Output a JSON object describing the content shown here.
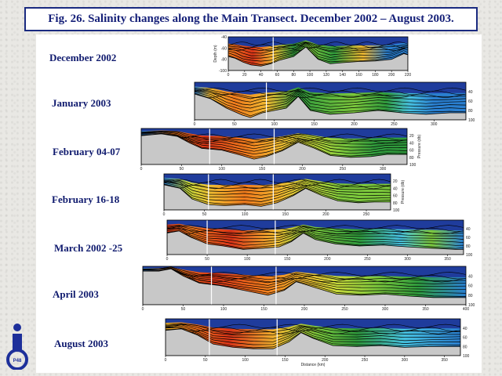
{
  "title": "Fig. 26. Salinity changes along the Main Transect. December 2002 – August 2003.",
  "logo": {
    "text": "P48",
    "colors": {
      "primary": "#1d2f9a",
      "ring": "#2a3ab0"
    }
  },
  "colors": {
    "surface": "#1f3c9c",
    "bottom": "#c8c8c8",
    "levels": [
      "#1f3c9c",
      "#2a7fd0",
      "#46c0e0",
      "#2f9a3c",
      "#7cc83c",
      "#c6d83a",
      "#f0b830",
      "#f07a1c",
      "#d83418"
    ],
    "contour": "#000000",
    "marker": "#ffffff"
  },
  "chart_data": [
    {
      "type": "heatmap",
      "label": "December 2002",
      "xticks": [
        "0",
        "20",
        "40",
        "60",
        "80",
        "100",
        "120",
        "140",
        "160",
        "180",
        "200",
        "220"
      ],
      "xlim": [
        0,
        220
      ],
      "markers": [
        55
      ],
      "yaxis_label": "Depth (m)",
      "yticks": [
        "-40",
        "-60",
        "-80",
        "-100"
      ],
      "ylim": [
        -100,
        -40
      ],
      "yside": "left",
      "xlabel": "",
      "bottom": [
        [
          0,
          75
        ],
        [
          8,
          78
        ],
        [
          18,
          85
        ],
        [
          28,
          90
        ],
        [
          40,
          92
        ],
        [
          52,
          88
        ],
        [
          62,
          82
        ],
        [
          80,
          75
        ],
        [
          95,
          58
        ],
        [
          110,
          80
        ],
        [
          125,
          88
        ],
        [
          140,
          86
        ],
        [
          160,
          84
        ],
        [
          180,
          83
        ],
        [
          200,
          80
        ],
        [
          215,
          70
        ],
        [
          220,
          72
        ]
      ],
      "zones": [
        [
          0,
          "#f07a1c"
        ],
        [
          30,
          "#d83418"
        ],
        [
          55,
          "#f0b830"
        ],
        [
          80,
          "#2f9a3c"
        ],
        [
          100,
          "#7cc83c"
        ],
        [
          130,
          "#2f9a3c"
        ],
        [
          165,
          "#f0b830"
        ],
        [
          195,
          "#2a7fd0"
        ],
        [
          220,
          "#2a7fd0"
        ]
      ]
    },
    {
      "type": "heatmap",
      "label": "January 2003",
      "xticks": [
        "0",
        "50",
        "100",
        "150",
        "200",
        "250",
        "300"
      ],
      "xlim": [
        0,
        340
      ],
      "markers": [
        90
      ],
      "yaxis_label": "",
      "yticks": [
        "40",
        "60",
        "80",
        "100"
      ],
      "ylim": [
        20,
        100
      ],
      "yside": "right",
      "xlabel": "",
      "bottom": [
        [
          0,
          45
        ],
        [
          20,
          55
        ],
        [
          40,
          75
        ],
        [
          60,
          90
        ],
        [
          70,
          95
        ],
        [
          85,
          85
        ],
        [
          100,
          80
        ],
        [
          115,
          75
        ],
        [
          130,
          50
        ],
        [
          145,
          80
        ],
        [
          170,
          88
        ],
        [
          200,
          85
        ],
        [
          230,
          80
        ],
        [
          260,
          85
        ],
        [
          290,
          88
        ],
        [
          320,
          85
        ],
        [
          340,
          85
        ]
      ],
      "zones": [
        [
          0,
          "#2a7fd0"
        ],
        [
          20,
          "#f0b830"
        ],
        [
          50,
          "#f07a1c"
        ],
        [
          90,
          "#f0b830"
        ],
        [
          130,
          "#2f9a3c"
        ],
        [
          200,
          "#7cc83c"
        ],
        [
          240,
          "#2f9a3c"
        ],
        [
          270,
          "#46c0e0"
        ],
        [
          300,
          "#2a7fd0"
        ],
        [
          340,
          "#2a7fd0"
        ]
      ]
    },
    {
      "type": "heatmap",
      "label": "February 04-07",
      "xticks": [
        "0",
        "50",
        "100",
        "150",
        "200",
        "250",
        "300"
      ],
      "xlim": [
        0,
        330
      ],
      "markers": [
        85,
        165
      ],
      "yaxis_label": "Pressure (db)",
      "yticks": [
        "20",
        "40",
        "60",
        "80",
        "100"
      ],
      "ylim": [
        0,
        100
      ],
      "yside": "right",
      "xlabel": "",
      "bottom": [
        [
          0,
          20
        ],
        [
          25,
          15
        ],
        [
          45,
          22
        ],
        [
          60,
          40
        ],
        [
          75,
          55
        ],
        [
          100,
          60
        ],
        [
          125,
          75
        ],
        [
          140,
          85
        ],
        [
          155,
          78
        ],
        [
          175,
          62
        ],
        [
          195,
          38
        ],
        [
          215,
          55
        ],
        [
          235,
          75
        ],
        [
          260,
          80
        ],
        [
          285,
          78
        ],
        [
          305,
          72
        ],
        [
          330,
          72
        ]
      ],
      "zones": [
        [
          0,
          "#2a7fd0"
        ],
        [
          40,
          "#f07a1c"
        ],
        [
          80,
          "#d83418"
        ],
        [
          130,
          "#f07a1c"
        ],
        [
          170,
          "#f0b830"
        ],
        [
          210,
          "#c6d83a"
        ],
        [
          250,
          "#7cc83c"
        ],
        [
          290,
          "#2f9a3c"
        ],
        [
          330,
          "#2f9a3c"
        ]
      ]
    },
    {
      "type": "heatmap",
      "label": "February 16-18",
      "xticks": [
        "0",
        "50",
        "100",
        "150",
        "200",
        "250"
      ],
      "xlim": [
        0,
        280
      ],
      "markers": [
        55,
        135
      ],
      "yaxis_label": "Pressure (db)",
      "yticks": [
        "20",
        "40",
        "60",
        "80",
        "100"
      ],
      "ylim": [
        0,
        100
      ],
      "yside": "right",
      "xlabel": "",
      "bottom": [
        [
          0,
          30
        ],
        [
          20,
          40
        ],
        [
          35,
          70
        ],
        [
          55,
          85
        ],
        [
          75,
          88
        ],
        [
          100,
          85
        ],
        [
          120,
          90
        ],
        [
          140,
          80
        ],
        [
          160,
          60
        ],
        [
          175,
          40
        ],
        [
          195,
          60
        ],
        [
          215,
          75
        ],
        [
          240,
          80
        ],
        [
          260,
          78
        ],
        [
          280,
          78
        ]
      ],
      "zones": [
        [
          0,
          "#2a7fd0"
        ],
        [
          30,
          "#c6d83a"
        ],
        [
          60,
          "#f0b830"
        ],
        [
          100,
          "#f07a1c"
        ],
        [
          145,
          "#f0b830"
        ],
        [
          180,
          "#c6d83a"
        ],
        [
          220,
          "#7cc83c"
        ],
        [
          280,
          "#7cc83c"
        ]
      ]
    },
    {
      "type": "heatmap",
      "label": "March 2002 -25",
      "xticks": [
        "0",
        "50",
        "100",
        "150",
        "200",
        "250",
        "300",
        "350"
      ],
      "xlim": [
        0,
        370
      ],
      "markers": [
        50,
        135
      ],
      "yaxis_label": "",
      "yticks": [
        "40",
        "60",
        "80",
        "100"
      ],
      "ylim": [
        20,
        100
      ],
      "yside": "right",
      "xlabel": "",
      "bottom": [
        [
          0,
          50
        ],
        [
          15,
          45
        ],
        [
          30,
          60
        ],
        [
          50,
          75
        ],
        [
          70,
          80
        ],
        [
          95,
          88
        ],
        [
          120,
          85
        ],
        [
          140,
          82
        ],
        [
          155,
          70
        ],
        [
          170,
          50
        ],
        [
          185,
          65
        ],
        [
          210,
          75
        ],
        [
          240,
          80
        ],
        [
          270,
          78
        ],
        [
          300,
          82
        ],
        [
          330,
          85
        ],
        [
          360,
          88
        ],
        [
          370,
          88
        ]
      ],
      "zones": [
        [
          0,
          "#d83418"
        ],
        [
          30,
          "#f07a1c"
        ],
        [
          80,
          "#d83418"
        ],
        [
          135,
          "#f0b830"
        ],
        [
          180,
          "#7cc83c"
        ],
        [
          240,
          "#2f9a3c"
        ],
        [
          290,
          "#46c0e0"
        ],
        [
          330,
          "#7cc83c"
        ],
        [
          370,
          "#2a7fd0"
        ]
      ]
    },
    {
      "type": "heatmap",
      "label": "April 2003",
      "xticks": [
        "0",
        "50",
        "100",
        "150",
        "200",
        "250",
        "300",
        "350",
        "400"
      ],
      "xlim": [
        0,
        400
      ],
      "markers": [
        85,
        165
      ],
      "yaxis_label": "",
      "yticks": [
        "40",
        "60",
        "80",
        "100"
      ],
      "ylim": [
        20,
        100
      ],
      "yside": "right",
      "xlabel": "",
      "bottom": [
        [
          0,
          30
        ],
        [
          20,
          30
        ],
        [
          35,
          25
        ],
        [
          50,
          40
        ],
        [
          70,
          55
        ],
        [
          95,
          60
        ],
        [
          125,
          70
        ],
        [
          155,
          80
        ],
        [
          175,
          70
        ],
        [
          190,
          52
        ],
        [
          215,
          65
        ],
        [
          240,
          78
        ],
        [
          270,
          80
        ],
        [
          300,
          78
        ],
        [
          330,
          82
        ],
        [
          360,
          85
        ],
        [
          400,
          85
        ]
      ],
      "zones": [
        [
          0,
          "#2a7fd0"
        ],
        [
          40,
          "#f07a1c"
        ],
        [
          90,
          "#d83418"
        ],
        [
          150,
          "#f07a1c"
        ],
        [
          200,
          "#f0b830"
        ],
        [
          240,
          "#c6d83a"
        ],
        [
          290,
          "#7cc83c"
        ],
        [
          340,
          "#2f9a3c"
        ],
        [
          400,
          "#2a7fd0"
        ]
      ]
    },
    {
      "type": "heatmap",
      "label": "August 2003",
      "xticks": [
        "0",
        "50",
        "100",
        "150",
        "200",
        "250",
        "300",
        "350"
      ],
      "xlim": [
        0,
        370
      ],
      "markers": [
        55,
        140
      ],
      "yaxis_label": "",
      "yticks": [
        "40",
        "60",
        "80",
        "100"
      ],
      "ylim": [
        20,
        100
      ],
      "yside": "right",
      "xlabel": "Distance (km)",
      "bottom": [
        [
          0,
          45
        ],
        [
          20,
          42
        ],
        [
          40,
          55
        ],
        [
          60,
          75
        ],
        [
          85,
          82
        ],
        [
          110,
          85
        ],
        [
          135,
          85
        ],
        [
          155,
          70
        ],
        [
          170,
          50
        ],
        [
          185,
          62
        ],
        [
          210,
          78
        ],
        [
          240,
          80
        ],
        [
          270,
          78
        ],
        [
          300,
          82
        ],
        [
          330,
          80
        ],
        [
          370,
          80
        ]
      ],
      "zones": [
        [
          0,
          "#f0b830"
        ],
        [
          30,
          "#f07a1c"
        ],
        [
          80,
          "#d83418"
        ],
        [
          140,
          "#f0b830"
        ],
        [
          190,
          "#7cc83c"
        ],
        [
          240,
          "#2f9a3c"
        ],
        [
          300,
          "#46c0e0"
        ],
        [
          370,
          "#2a7fd0"
        ]
      ]
    }
  ]
}
